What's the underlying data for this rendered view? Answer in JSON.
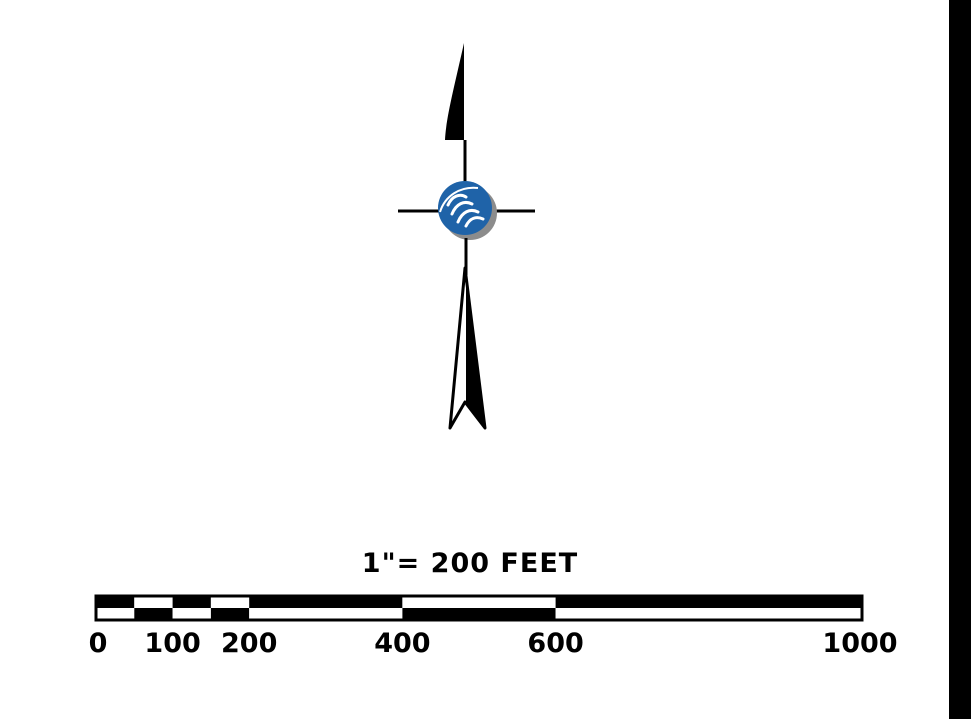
{
  "scale_bar": {
    "caption": "1\"= 200 FEET",
    "unit": "FEET",
    "max_value": 1000,
    "ticks": [
      {
        "label": "0",
        "value": 0
      },
      {
        "label": "100",
        "value": 100
      },
      {
        "label": "200",
        "value": 200
      },
      {
        "label": "400",
        "value": 400
      },
      {
        "label": "600",
        "value": 600
      },
      {
        "label": "1000",
        "value": 1000
      }
    ],
    "segments": [
      {
        "from": 0,
        "to": 50,
        "top_fill": "black",
        "bottom_fill": "white"
      },
      {
        "from": 50,
        "to": 100,
        "top_fill": "white",
        "bottom_fill": "black"
      },
      {
        "from": 100,
        "to": 150,
        "top_fill": "black",
        "bottom_fill": "white"
      },
      {
        "from": 150,
        "to": 200,
        "top_fill": "white",
        "bottom_fill": "black"
      },
      {
        "from": 200,
        "to": 400,
        "top_fill": "black",
        "bottom_fill": "white"
      },
      {
        "from": 400,
        "to": 600,
        "top_fill": "white",
        "bottom_fill": "black"
      },
      {
        "from": 600,
        "to": 1000,
        "top_fill": "black",
        "bottom_fill": "white"
      }
    ]
  },
  "north_arrow": {
    "icon": "north-arrow-icon",
    "logo": "hand-logo-icon"
  },
  "colors": {
    "ink": "#000000",
    "logo_blue": "#1f63a8",
    "logo_gray": "#8c8c8c",
    "background": "#ffffff"
  }
}
